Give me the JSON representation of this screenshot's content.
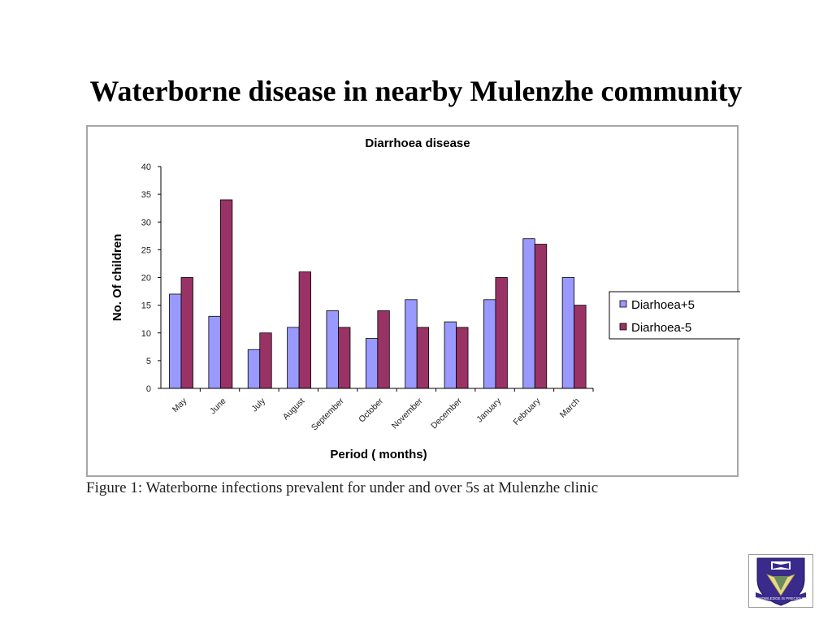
{
  "slide": {
    "title": "Waterborne disease in nearby Mulenzhe community",
    "caption": "Figure 1: Waterborne infections prevalent for under and over 5s at Mulenzhe clinic",
    "logo_text": "KNOWLEDGE IS PRECIOUS"
  },
  "chart_data": {
    "type": "bar",
    "title": "Diarrhoea disease",
    "xlabel": "Period ( months)",
    "ylabel": "No. Of children",
    "ylim": [
      0,
      40
    ],
    "yticks": [
      0,
      5,
      10,
      15,
      20,
      25,
      30,
      35,
      40
    ],
    "grid": false,
    "legend_position": "right",
    "categories": [
      "May",
      "June",
      "July",
      "August",
      "September",
      "October",
      "November",
      "December",
      "January",
      "February",
      "March"
    ],
    "series": [
      {
        "name": "Diarhoea+5",
        "color": "#9999ff",
        "values": [
          17,
          13,
          7,
          11,
          14,
          9,
          16,
          12,
          16,
          27,
          20
        ]
      },
      {
        "name": "Diarhoea-5",
        "color": "#993366",
        "values": [
          20,
          34,
          10,
          21,
          11,
          14,
          11,
          11,
          20,
          26,
          15
        ]
      }
    ]
  }
}
